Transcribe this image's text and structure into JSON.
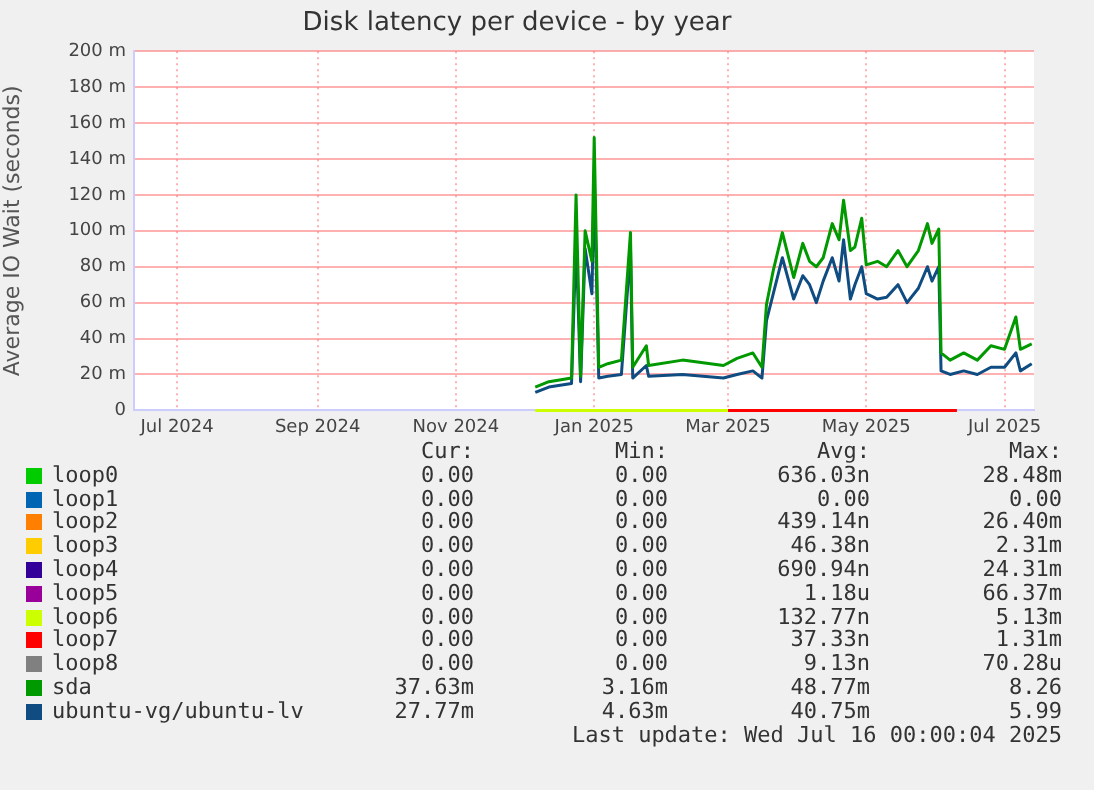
{
  "chart_data": {
    "type": "line",
    "title": "Disk latency per device - by year",
    "ylabel": "Average IO Wait (seconds)",
    "xlim": [
      "2024-06-12",
      "2025-07-14"
    ],
    "xticks": [
      {
        "value": "2024-07-01",
        "label": "Jul 2024"
      },
      {
        "value": "2024-09-01",
        "label": "Sep 2024"
      },
      {
        "value": "2024-11-01",
        "label": "Nov 2024"
      },
      {
        "value": "2025-01-01",
        "label": "Jan 2025"
      },
      {
        "value": "2025-03-01",
        "label": "Mar 2025"
      },
      {
        "value": "2025-05-01",
        "label": "May 2025"
      },
      {
        "value": "2025-07-01",
        "label": "Jul 2025"
      }
    ],
    "ylim": [
      0,
      200
    ],
    "yticks": [
      0,
      {
        "value": 20,
        "label": "20 m"
      },
      {
        "value": 40,
        "label": "40 m"
      },
      {
        "value": 60,
        "label": "60 m"
      },
      {
        "value": 80,
        "label": "80 m"
      },
      {
        "value": 100,
        "label": "100 m"
      },
      {
        "value": 120,
        "label": "120 m"
      },
      {
        "value": 140,
        "label": "140 m"
      },
      {
        "value": 160,
        "label": "160 m"
      },
      {
        "value": 180,
        "label": "180 m"
      },
      {
        "value": 200,
        "label": "200 m"
      }
    ],
    "grid": true,
    "legend": "bottom",
    "marker": "none",
    "line_style": "solid",
    "x": [
      "2024-12-06",
      "2024-12-12",
      "2024-12-22",
      "2024-12-24",
      "2024-12-26",
      "2024-12-28",
      "2024-12-31",
      "2025-01-01",
      "2025-01-03",
      "2025-01-07",
      "2025-01-13",
      "2025-01-17",
      "2025-01-18",
      "2025-01-24",
      "2025-01-25",
      "2025-02-09",
      "2025-02-27",
      "2025-03-05",
      "2025-03-12",
      "2025-03-16",
      "2025-03-18",
      "2025-03-21",
      "2025-03-25",
      "2025-03-30",
      "2025-04-03",
      "2025-04-06",
      "2025-04-09",
      "2025-04-12",
      "2025-04-16",
      "2025-04-19",
      "2025-04-21",
      "2025-04-24",
      "2025-04-26",
      "2025-04-29",
      "2025-05-01",
      "2025-05-06",
      "2025-05-10",
      "2025-05-15",
      "2025-05-19",
      "2025-05-24",
      "2025-05-28",
      "2025-05-30",
      "2025-06-02",
      "2025-06-03",
      "2025-06-07",
      "2025-06-13",
      "2025-06-19",
      "2025-06-25",
      "2025-07-01",
      "2025-07-06",
      "2025-07-08",
      "2025-07-13"
    ],
    "series": [
      {
        "name": "loop0",
        "color": "#00cc00",
        "values": [
          null,
          null,
          null,
          null,
          null,
          null,
          null,
          null,
          null,
          null,
          null,
          null,
          null,
          null,
          null,
          null,
          null,
          null,
          null,
          null,
          null,
          null,
          null,
          null,
          null,
          null,
          null,
          null,
          null,
          null,
          null,
          null,
          null,
          null,
          null,
          null,
          null,
          null,
          null,
          null,
          null,
          null,
          null,
          null,
          null,
          null,
          null,
          null,
          null,
          null,
          null,
          null
        ]
      },
      {
        "name": "loop1",
        "color": "#0066b3",
        "values": [
          null,
          null,
          null,
          null,
          null,
          null,
          null,
          null,
          null,
          null,
          null,
          null,
          null,
          null,
          null,
          null,
          null,
          null,
          null,
          null,
          null,
          null,
          null,
          null,
          null,
          null,
          null,
          null,
          null,
          null,
          null,
          null,
          null,
          null,
          null,
          null,
          null,
          null,
          null,
          null,
          null,
          null,
          null,
          null,
          null,
          null,
          null,
          null,
          null,
          null,
          null,
          null
        ]
      },
      {
        "name": "loop2",
        "color": "#ff8000",
        "values": [
          null,
          null,
          null,
          null,
          null,
          null,
          null,
          null,
          null,
          null,
          null,
          null,
          null,
          null,
          null,
          null,
          null,
          null,
          null,
          null,
          null,
          null,
          null,
          null,
          null,
          null,
          null,
          null,
          null,
          null,
          null,
          null,
          null,
          null,
          null,
          null,
          null,
          null,
          null,
          null,
          null,
          null,
          null,
          null,
          null,
          null,
          null,
          null,
          null,
          null,
          null,
          null
        ]
      },
      {
        "name": "loop3",
        "color": "#ffcc00",
        "values": [
          null,
          null,
          null,
          null,
          null,
          null,
          null,
          null,
          null,
          null,
          null,
          null,
          null,
          null,
          null,
          null,
          null,
          null,
          null,
          null,
          null,
          null,
          null,
          null,
          null,
          null,
          null,
          null,
          null,
          null,
          null,
          null,
          null,
          null,
          null,
          null,
          null,
          null,
          null,
          null,
          null,
          null,
          null,
          null,
          null,
          null,
          null,
          null,
          null,
          null,
          null,
          null
        ]
      },
      {
        "name": "loop4",
        "color": "#330099",
        "values": [
          null,
          null,
          null,
          null,
          null,
          null,
          null,
          null,
          null,
          null,
          null,
          null,
          null,
          null,
          null,
          null,
          null,
          null,
          null,
          null,
          null,
          null,
          null,
          null,
          null,
          null,
          null,
          null,
          null,
          null,
          null,
          null,
          null,
          null,
          null,
          null,
          null,
          null,
          null,
          null,
          null,
          null,
          null,
          null,
          null,
          null,
          null,
          null,
          null,
          null,
          null,
          null
        ]
      },
      {
        "name": "loop5",
        "color": "#990099",
        "values": [
          null,
          null,
          null,
          null,
          null,
          null,
          null,
          null,
          null,
          null,
          null,
          null,
          null,
          null,
          null,
          null,
          null,
          null,
          null,
          null,
          null,
          null,
          null,
          null,
          null,
          null,
          null,
          null,
          null,
          null,
          null,
          null,
          null,
          null,
          null,
          null,
          null,
          null,
          null,
          null,
          null,
          null,
          null,
          null,
          null,
          null,
          null,
          null,
          null,
          null,
          null,
          null
        ]
      },
      {
        "name": "loop6",
        "color": "#ccff00",
        "x": [
          "2024-12-06",
          "2025-03-01"
        ],
        "values": [
          0,
          0
        ]
      },
      {
        "name": "loop7",
        "color": "#ff0000",
        "x": [
          "2025-03-01",
          "2025-06-10"
        ],
        "values": [
          0,
          0
        ]
      },
      {
        "name": "loop8",
        "color": "#808080",
        "values": [
          null,
          null,
          null,
          null,
          null,
          null,
          null,
          null,
          null,
          null,
          null,
          null,
          null,
          null,
          null,
          null,
          null,
          null,
          null,
          null,
          null,
          null,
          null,
          null,
          null,
          null,
          null,
          null,
          null,
          null,
          null,
          null,
          null,
          null,
          null,
          null,
          null,
          null,
          null,
          null,
          null,
          null,
          null,
          null,
          null,
          null,
          null,
          null,
          null,
          null,
          null,
          null
        ]
      },
      {
        "name": "sda",
        "color": "#009900",
        "values": [
          13,
          16,
          18,
          120,
          19,
          100,
          83,
          152,
          24,
          26,
          28,
          99,
          24,
          36,
          25,
          28,
          25,
          29,
          32,
          24,
          59,
          78,
          99,
          74,
          93,
          83,
          80,
          85,
          104,
          95,
          117,
          89,
          91,
          107,
          81,
          83,
          80,
          89,
          80,
          89,
          104,
          93,
          101,
          32,
          28,
          32,
          28,
          36,
          34,
          52,
          34,
          37
        ]
      },
      {
        "name": "ubuntu-vg/ubuntu-lv",
        "color": "#0f4c81",
        "values": [
          10,
          13,
          15,
          95,
          16,
          90,
          65,
          130,
          18,
          19,
          20,
          90,
          18,
          25,
          19,
          20,
          18,
          20,
          22,
          18,
          50,
          65,
          85,
          62,
          75,
          70,
          60,
          72,
          85,
          72,
          95,
          62,
          70,
          80,
          65,
          62,
          63,
          70,
          60,
          68,
          80,
          72,
          80,
          22,
          20,
          22,
          20,
          24,
          24,
          32,
          22,
          26
        ]
      }
    ],
    "annotations": [
      "Cur:",
      "Min:",
      "Avg:",
      "Max:",
      "0.00",
      "0.00",
      "636.03n",
      "28.48m",
      "0.00",
      "0.00",
      "0.00",
      "0.00",
      "0.00",
      "0.00",
      "439.14n",
      "26.40m",
      "0.00",
      "0.00",
      "46.38n",
      "2.31m",
      "0.00",
      "0.00",
      "690.94n",
      "24.31m",
      "0.00",
      "0.00",
      "1.18u",
      "66.37m",
      "0.00",
      "0.00",
      "132.77n",
      "5.13m",
      "0.00",
      "0.00",
      "37.33n",
      "1.31m",
      "0.00",
      "0.00",
      "9.13n",
      "70.28u",
      "37.63m",
      "3.16m",
      "48.77m",
      "8.26",
      "27.77m",
      "4.63m",
      "40.75m",
      "5.99",
      "Last update: Wed Jul 16 00:00:04 2025"
    ]
  }
}
